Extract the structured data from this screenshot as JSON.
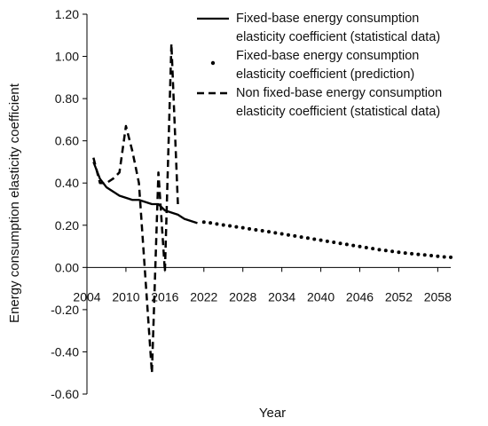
{
  "chart_data": {
    "type": "line",
    "title": "",
    "xlabel": "Year",
    "ylabel": "Energy consumption elasticity coefficient",
    "xlim": [
      2004,
      2060
    ],
    "ylim": [
      -0.6,
      1.2
    ],
    "x_ticks": [
      "2004",
      "2010",
      "2016",
      "2022",
      "2028",
      "2034",
      "2040",
      "2046",
      "2052",
      "2058"
    ],
    "y_ticks": [
      "1.20",
      "1.00",
      "0.80",
      "0.60",
      "0.40",
      "0.20",
      "0.00",
      "-0.20",
      "-0.40",
      "-0.60"
    ],
    "grid": false,
    "legend_position": "top-right",
    "series": [
      {
        "name": "Fixed-base energy consumption elasticity coefficient (statistical data)",
        "legend_lines": [
          "Fixed-base energy consumption",
          "elasticity coefficient (statistical data)"
        ],
        "style": "solid",
        "color": "#000000",
        "x": [
          2005,
          2006,
          2007,
          2008,
          2009,
          2010,
          2011,
          2012,
          2013,
          2014,
          2015,
          2016,
          2017,
          2018,
          2019,
          2020,
          2021
        ],
        "y": [
          0.5,
          0.42,
          0.38,
          0.36,
          0.34,
          0.33,
          0.32,
          0.32,
          0.31,
          0.3,
          0.3,
          0.27,
          0.26,
          0.25,
          0.23,
          0.22,
          0.21
        ]
      },
      {
        "name": "Fixed-base energy consumption elasticity coefficient (prediction)",
        "legend_lines": [
          "Fixed-base energy consumption",
          "elasticity coefficient (prediction)"
        ],
        "style": "dotted",
        "color": "#000000",
        "x": [
          2022,
          2023,
          2024,
          2025,
          2026,
          2027,
          2028,
          2029,
          2030,
          2031,
          2032,
          2033,
          2034,
          2035,
          2036,
          2037,
          2038,
          2039,
          2040,
          2041,
          2042,
          2043,
          2044,
          2045,
          2046,
          2047,
          2048,
          2049,
          2050,
          2051,
          2052,
          2053,
          2054,
          2055,
          2056,
          2057,
          2058,
          2059,
          2060
        ],
        "y": [
          0.215,
          0.211,
          0.206,
          0.201,
          0.197,
          0.192,
          0.188,
          0.183,
          0.178,
          0.174,
          0.169,
          0.164,
          0.159,
          0.154,
          0.149,
          0.144,
          0.139,
          0.134,
          0.129,
          0.124,
          0.119,
          0.114,
          0.109,
          0.104,
          0.099,
          0.094,
          0.089,
          0.084,
          0.08,
          0.076,
          0.072,
          0.068,
          0.065,
          0.062,
          0.059,
          0.056,
          0.053,
          0.05,
          0.048
        ]
      },
      {
        "name": "Non fixed-base energy consumption elasticity coefficient (statistical data)",
        "legend_lines": [
          "Non fixed-base energy consumption",
          "elasticity coefficient (statistical data)"
        ],
        "style": "dashed",
        "color": "#000000",
        "x": [
          2005,
          2006,
          2007,
          2008,
          2009,
          2010,
          2011,
          2012,
          2013,
          2014,
          2015,
          2016,
          2017,
          2018,
          2019,
          2020,
          2021
        ],
        "y": [
          0.52,
          0.4,
          0.4,
          0.42,
          0.45,
          0.67,
          0.55,
          0.4,
          -0.05,
          -0.5,
          0.45,
          -0.02,
          1.06,
          0.3,
          null,
          null,
          null
        ]
      }
    ]
  }
}
